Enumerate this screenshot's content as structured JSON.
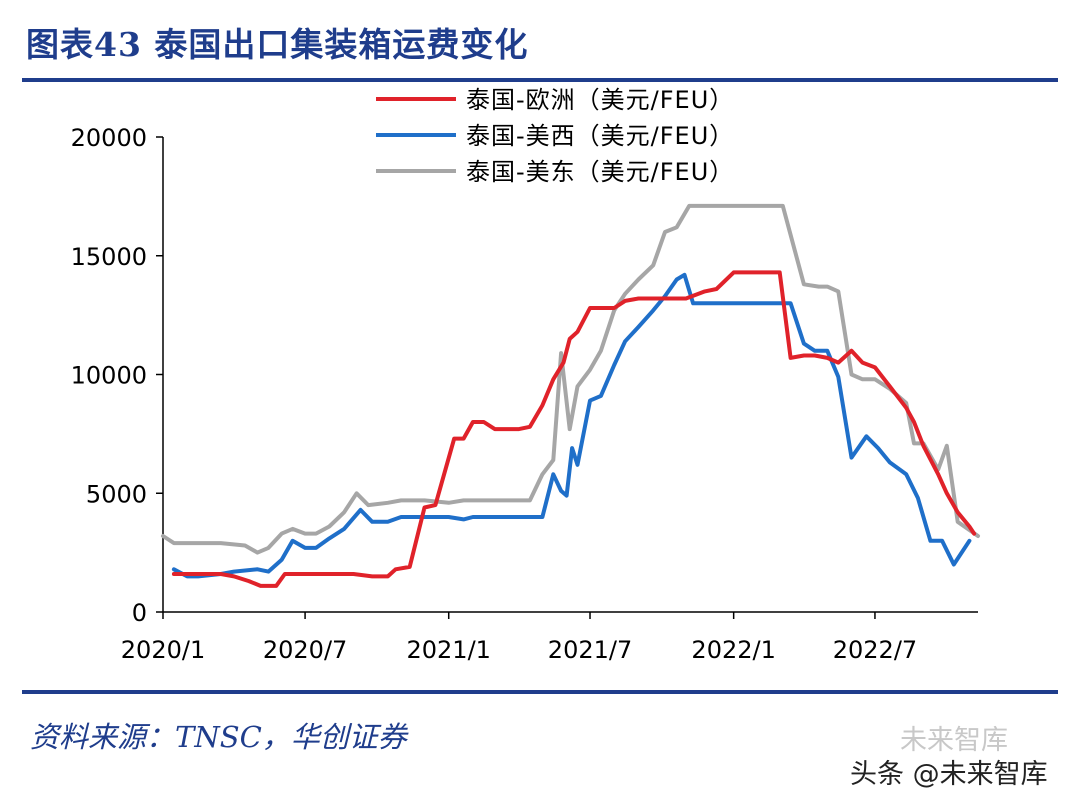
{
  "figure_title": "图表43 泰国出口集装箱运费变化",
  "source_note": "资料来源：TNSC，华创证券",
  "watermark": "头条 @未来智库",
  "watermark_faint": "未来智库",
  "colors": {
    "accent": "#1f3d8c",
    "series": [
      "#e0222a",
      "#1f6fc9",
      "#a6a6a6"
    ]
  },
  "chart_data": {
    "type": "line",
    "title": "",
    "xlabel": "",
    "ylabel": "",
    "ylim": [
      0,
      20000
    ],
    "yticks": [
      0,
      5000,
      10000,
      15000,
      20000
    ],
    "xlim": [
      "2020-01-01",
      "2022-11-10"
    ],
    "xticks": [
      "2020-01-01",
      "2020-07-01",
      "2021-01-01",
      "2021-07-01",
      "2022-01-01",
      "2022-07-01"
    ],
    "xtick_labels": [
      "2020/1",
      "2020/7",
      "2021/1",
      "2021/7",
      "2022/1",
      "2022/7"
    ],
    "grid": false,
    "legend_position": "top-center",
    "series": [
      {
        "name": "泰国-欧洲（美元/FEU）",
        "color": "#e0222a",
        "points": [
          [
            "2020-01-15",
            1600
          ],
          [
            "2020-02-15",
            1600
          ],
          [
            "2020-03-15",
            1600
          ],
          [
            "2020-04-01",
            1500
          ],
          [
            "2020-04-20",
            1300
          ],
          [
            "2020-05-05",
            1100
          ],
          [
            "2020-05-25",
            1100
          ],
          [
            "2020-06-05",
            1600
          ],
          [
            "2020-07-01",
            1600
          ],
          [
            "2020-08-01",
            1600
          ],
          [
            "2020-09-01",
            1600
          ],
          [
            "2020-09-25",
            1500
          ],
          [
            "2020-10-15",
            1500
          ],
          [
            "2020-10-25",
            1800
          ],
          [
            "2020-11-12",
            1900
          ],
          [
            "2020-12-01",
            4400
          ],
          [
            "2020-12-15",
            4500
          ],
          [
            "2021-01-08",
            7300
          ],
          [
            "2021-01-20",
            7300
          ],
          [
            "2021-02-01",
            8000
          ],
          [
            "2021-02-15",
            8000
          ],
          [
            "2021-03-01",
            7700
          ],
          [
            "2021-03-15",
            7700
          ],
          [
            "2021-04-01",
            7700
          ],
          [
            "2021-04-15",
            7800
          ],
          [
            "2021-05-01",
            8700
          ],
          [
            "2021-05-15",
            9800
          ],
          [
            "2021-05-28",
            10500
          ],
          [
            "2021-06-05",
            11500
          ],
          [
            "2021-06-15",
            11800
          ],
          [
            "2021-07-01",
            12800
          ],
          [
            "2021-07-20",
            12800
          ],
          [
            "2021-08-01",
            12800
          ],
          [
            "2021-08-15",
            13100
          ],
          [
            "2021-09-01",
            13200
          ],
          [
            "2021-10-01",
            13200
          ],
          [
            "2021-11-01",
            13200
          ],
          [
            "2021-11-25",
            13500
          ],
          [
            "2021-12-10",
            13600
          ],
          [
            "2022-01-01",
            14300
          ],
          [
            "2022-02-01",
            14300
          ],
          [
            "2022-03-01",
            14300
          ],
          [
            "2022-03-15",
            10700
          ],
          [
            "2022-04-01",
            10800
          ],
          [
            "2022-04-15",
            10800
          ],
          [
            "2022-05-01",
            10700
          ],
          [
            "2022-05-15",
            10500
          ],
          [
            "2022-06-01",
            11000
          ],
          [
            "2022-06-15",
            10500
          ],
          [
            "2022-07-01",
            10300
          ],
          [
            "2022-07-20",
            9500
          ],
          [
            "2022-08-10",
            8600
          ],
          [
            "2022-08-20",
            8000
          ],
          [
            "2022-09-01",
            7000
          ],
          [
            "2022-09-20",
            5800
          ],
          [
            "2022-10-01",
            5000
          ],
          [
            "2022-10-15",
            4200
          ],
          [
            "2022-10-30",
            3600
          ],
          [
            "2022-11-05",
            3300
          ]
        ]
      },
      {
        "name": "泰国-美西（美元/FEU）",
        "color": "#1f6fc9",
        "points": [
          [
            "2020-01-15",
            1800
          ],
          [
            "2020-02-01",
            1500
          ],
          [
            "2020-02-15",
            1500
          ],
          [
            "2020-03-15",
            1600
          ],
          [
            "2020-04-01",
            1700
          ],
          [
            "2020-05-01",
            1800
          ],
          [
            "2020-05-15",
            1700
          ],
          [
            "2020-06-01",
            2200
          ],
          [
            "2020-06-15",
            3000
          ],
          [
            "2020-07-01",
            2700
          ],
          [
            "2020-07-15",
            2700
          ],
          [
            "2020-08-01",
            3100
          ],
          [
            "2020-08-20",
            3500
          ],
          [
            "2020-09-10",
            4300
          ],
          [
            "2020-09-25",
            3800
          ],
          [
            "2020-10-15",
            3800
          ],
          [
            "2020-11-01",
            4000
          ],
          [
            "2020-12-01",
            4000
          ],
          [
            "2021-01-01",
            4000
          ],
          [
            "2021-01-20",
            3900
          ],
          [
            "2021-02-01",
            4000
          ],
          [
            "2021-03-01",
            4000
          ],
          [
            "2021-04-01",
            4000
          ],
          [
            "2021-05-01",
            4000
          ],
          [
            "2021-05-15",
            5800
          ],
          [
            "2021-05-25",
            5100
          ],
          [
            "2021-06-01",
            4900
          ],
          [
            "2021-06-08",
            6900
          ],
          [
            "2021-06-15",
            6200
          ],
          [
            "2021-07-01",
            8900
          ],
          [
            "2021-07-15",
            9100
          ],
          [
            "2021-08-01",
            10400
          ],
          [
            "2021-08-15",
            11400
          ],
          [
            "2021-09-01",
            12000
          ],
          [
            "2021-09-20",
            12700
          ],
          [
            "2021-10-05",
            13300
          ],
          [
            "2021-10-20",
            14000
          ],
          [
            "2021-10-30",
            14200
          ],
          [
            "2021-11-10",
            13000
          ],
          [
            "2021-12-01",
            13000
          ],
          [
            "2022-01-01",
            13000
          ],
          [
            "2022-02-01",
            13000
          ],
          [
            "2022-03-01",
            13000
          ],
          [
            "2022-03-15",
            13000
          ],
          [
            "2022-04-01",
            11300
          ],
          [
            "2022-04-15",
            11000
          ],
          [
            "2022-05-01",
            11000
          ],
          [
            "2022-05-15",
            9900
          ],
          [
            "2022-06-01",
            6500
          ],
          [
            "2022-06-20",
            7400
          ],
          [
            "2022-07-05",
            6900
          ],
          [
            "2022-07-20",
            6300
          ],
          [
            "2022-08-10",
            5800
          ],
          [
            "2022-08-25",
            4800
          ],
          [
            "2022-09-10",
            3000
          ],
          [
            "2022-09-25",
            3000
          ],
          [
            "2022-10-10",
            2000
          ],
          [
            "2022-10-30",
            3000
          ]
        ]
      },
      {
        "name": "泰国-美东（美元/FEU）",
        "color": "#a6a6a6",
        "points": [
          [
            "2020-01-01",
            3200
          ],
          [
            "2020-01-15",
            2900
          ],
          [
            "2020-02-15",
            2900
          ],
          [
            "2020-03-15",
            2900
          ],
          [
            "2020-04-15",
            2800
          ],
          [
            "2020-05-01",
            2500
          ],
          [
            "2020-05-15",
            2700
          ],
          [
            "2020-06-01",
            3300
          ],
          [
            "2020-06-15",
            3500
          ],
          [
            "2020-07-01",
            3300
          ],
          [
            "2020-07-15",
            3300
          ],
          [
            "2020-08-01",
            3600
          ],
          [
            "2020-08-20",
            4200
          ],
          [
            "2020-09-05",
            5000
          ],
          [
            "2020-09-20",
            4500
          ],
          [
            "2020-10-15",
            4600
          ],
          [
            "2020-11-01",
            4700
          ],
          [
            "2020-12-01",
            4700
          ],
          [
            "2021-01-01",
            4600
          ],
          [
            "2021-01-20",
            4700
          ],
          [
            "2021-02-01",
            4700
          ],
          [
            "2021-03-01",
            4700
          ],
          [
            "2021-04-01",
            4700
          ],
          [
            "2021-04-15",
            4700
          ],
          [
            "2021-05-01",
            5800
          ],
          [
            "2021-05-15",
            6400
          ],
          [
            "2021-05-25",
            10900
          ],
          [
            "2021-06-05",
            7700
          ],
          [
            "2021-06-15",
            9500
          ],
          [
            "2021-07-01",
            10200
          ],
          [
            "2021-07-15",
            11000
          ],
          [
            "2021-08-01",
            12700
          ],
          [
            "2021-08-15",
            13400
          ],
          [
            "2021-09-01",
            14000
          ],
          [
            "2021-09-20",
            14600
          ],
          [
            "2021-10-05",
            16000
          ],
          [
            "2021-10-20",
            16200
          ],
          [
            "2021-11-05",
            17100
          ],
          [
            "2021-12-01",
            17100
          ],
          [
            "2022-01-01",
            17100
          ],
          [
            "2022-02-01",
            17100
          ],
          [
            "2022-03-05",
            17100
          ],
          [
            "2022-04-01",
            13800
          ],
          [
            "2022-04-20",
            13700
          ],
          [
            "2022-05-01",
            13700
          ],
          [
            "2022-05-15",
            13500
          ],
          [
            "2022-06-01",
            10000
          ],
          [
            "2022-06-15",
            9800
          ],
          [
            "2022-07-01",
            9800
          ],
          [
            "2022-07-20",
            9400
          ],
          [
            "2022-08-10",
            8800
          ],
          [
            "2022-08-20",
            7100
          ],
          [
            "2022-09-01",
            7100
          ],
          [
            "2022-09-20",
            6000
          ],
          [
            "2022-10-01",
            7000
          ],
          [
            "2022-10-15",
            3800
          ],
          [
            "2022-11-10",
            3200
          ]
        ]
      }
    ]
  }
}
